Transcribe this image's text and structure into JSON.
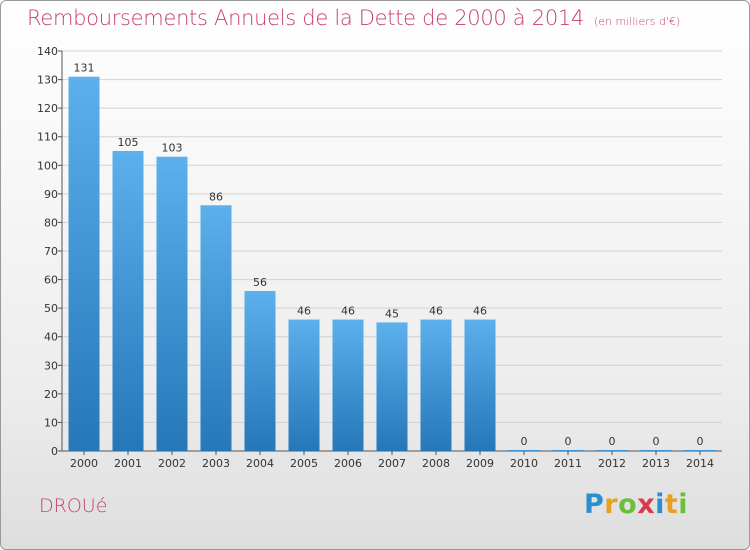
{
  "title": "Remboursements Annuels de la Dette de 2000 à 2014",
  "unit": "(en milliers d'€)",
  "commune": "DROUé",
  "logo": "Proxiti",
  "colors": {
    "title": "#c8406a",
    "bar_top": "#5cb0ec",
    "bar_bottom": "#2577b8"
  },
  "chart_data": {
    "type": "bar",
    "title": "Remboursements Annuels de la Dette de 2000 à 2014",
    "xlabel": "",
    "ylabel": "",
    "ylim": [
      0,
      140
    ],
    "yticks": [
      0,
      10,
      20,
      30,
      40,
      50,
      60,
      70,
      80,
      90,
      100,
      110,
      120,
      130,
      140
    ],
    "grid": true,
    "categories": [
      "2000",
      "2001",
      "2002",
      "2003",
      "2004",
      "2005",
      "2006",
      "2007",
      "2008",
      "2009",
      "2010",
      "2011",
      "2012",
      "2013",
      "2014"
    ],
    "values": [
      131,
      105,
      103,
      86,
      56,
      46,
      46,
      45,
      46,
      46,
      0,
      0,
      0,
      0,
      0
    ]
  }
}
